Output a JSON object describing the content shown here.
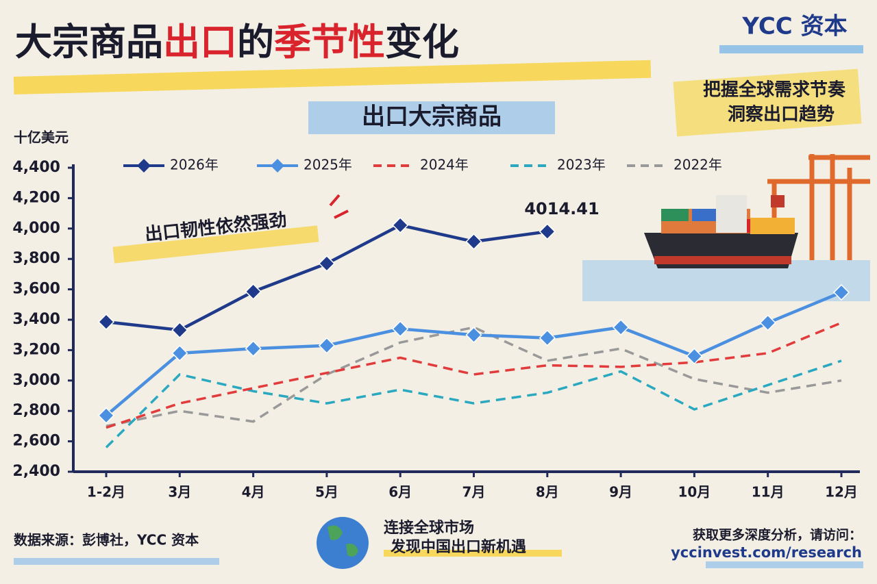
{
  "brand": "YCC 资本",
  "slogan": [
    "把握全球需求节奏",
    "洞察出口趋势"
  ],
  "footer": {
    "source": "数据来源：彭博社，YCC 资本",
    "center": [
      "连接全球市场",
      "发现中国出口新机遇"
    ],
    "visit": "获取更多深度分析，请访问：",
    "url": "yccinvest.com/research"
  },
  "chart_data": {
    "type": "line",
    "title": [
      "大宗商品",
      "出口",
      "的",
      "季节性",
      "变化"
    ],
    "title_colors": [
      "#1b1b2e",
      "#d9232d",
      "#1b1b2e",
      "#d9232d",
      "#1b1b2e"
    ],
    "subtitle": "出口大宗商品",
    "y_label": "十亿美元",
    "annotations": [
      "出口韧性依然强劲",
      "4014.41"
    ],
    "categories": [
      "1-2月",
      "3月",
      "4月",
      "5月",
      "6月",
      "7月",
      "8月",
      "9月",
      "10月",
      "11月",
      "12月"
    ],
    "series": [
      {
        "name": "2026年",
        "color": "#1f3a8a",
        "marker": "diamond",
        "dashed": false,
        "values": [
          3386,
          3332,
          3585,
          3770,
          4022,
          3914,
          3980,
          null,
          null,
          null,
          null
        ]
      },
      {
        "name": "2025年",
        "color": "#4a8fe0",
        "marker": "diamond",
        "dashed": false,
        "values": [
          2770,
          3180,
          3210,
          3230,
          3340,
          3300,
          3280,
          3350,
          3160,
          3380,
          3580
        ]
      },
      {
        "name": "2024年",
        "color": "#e23b3b",
        "dashed": true,
        "values": [
          2690,
          2850,
          2950,
          3050,
          3150,
          3040,
          3100,
          3090,
          3120,
          3180,
          3380
        ]
      },
      {
        "name": "2023年",
        "color": "#2aa8c0",
        "dashed": true,
        "values": [
          2560,
          3040,
          2930,
          2850,
          2940,
          2850,
          2920,
          3060,
          2810,
          2970,
          3130
        ]
      },
      {
        "name": "2022年",
        "color": "#999999",
        "dashed": true,
        "values": [
          2700,
          2800,
          2730,
          3040,
          3250,
          3350,
          3130,
          3210,
          3010,
          2920,
          3000
        ]
      }
    ],
    "ylim": [
      2400,
      4400
    ],
    "yticks": [
      {
        "value": 2400,
        "label": "2,400"
      },
      {
        "value": 2600,
        "label": "2,600"
      },
      {
        "value": 2800,
        "label": "2,800"
      },
      {
        "value": 3000,
        "label": "3,000"
      },
      {
        "value": 3200,
        "label": "3,200"
      },
      {
        "value": 3400,
        "label": "3,400"
      },
      {
        "value": 3600,
        "label": "3,600"
      },
      {
        "value": 3800,
        "label": "3,800"
      },
      {
        "value": 4000,
        "label": "4,000"
      },
      {
        "value": 4200,
        "label": "4,200"
      },
      {
        "value": 4400,
        "label": "4,400"
      }
    ],
    "grid": false
  }
}
